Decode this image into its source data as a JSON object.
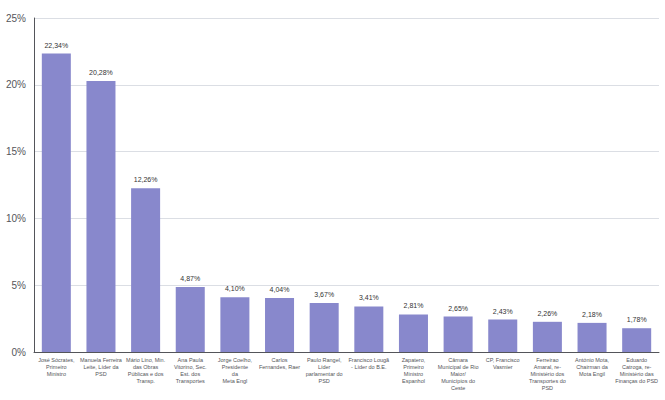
{
  "chart_data": {
    "type": "bar",
    "categories": [
      "José Sócrates,\nPrimeiro\nMinistro",
      "Manuela Ferreira\nLeite, Líder da\nPSD",
      "Mário Lino, Min.\ndas Obras\nPúblicas e dos\nTransp.",
      "Ana Paula\nVitorino, Sec.\nEst. dos\nTransportes",
      "Jorge Coelho,\nPresidente\nda\nMeta Engl",
      "Carlos\nFernandes, Raer",
      "Paulo Rangel,\nLíder\nparlamentar do\nPSD",
      "Francisco Lougã\n- Líder do B.E.",
      "Zapatero,\nPrimeiro\nMinistro\nEspanhol",
      "Câmara\nMunicipal de Rio\nMaior/\nMunicípios do\nCeste",
      "CP, Francisco\nVasmier",
      "Ferreirao\nAmaral, re-\nMinistério dos\nTransportes do\nPSD",
      "António Mota,\nChairman da\nMota Engil",
      "Eduardo\nCatroga, re-\nMinistério das\nFinanças do PSD"
    ],
    "values": [
      22.34,
      20.28,
      12.26,
      4.87,
      4.1,
      4.04,
      3.67,
      3.41,
      2.81,
      2.65,
      2.43,
      2.26,
      2.18,
      1.78
    ],
    "value_labels": [
      "22,34%",
      "20,28%",
      "12,26%",
      "4,87%",
      "4,10%",
      "4,04%",
      "3,67%",
      "3,41%",
      "2,81%",
      "2,65%",
      "2,43%",
      "2,26%",
      "2,18%",
      "1,78%"
    ],
    "data_labels": true,
    "color": "#8888cc",
    "ylim": [
      0,
      25
    ],
    "yticks": [
      {
        "value": 0,
        "label": "0%"
      },
      {
        "value": 5,
        "label": "5%"
      },
      {
        "value": 10,
        "label": "10%"
      },
      {
        "value": 15,
        "label": "15%"
      },
      {
        "value": 20,
        "label": "20%"
      },
      {
        "value": 25,
        "label": "25%"
      }
    ],
    "grid": true
  }
}
